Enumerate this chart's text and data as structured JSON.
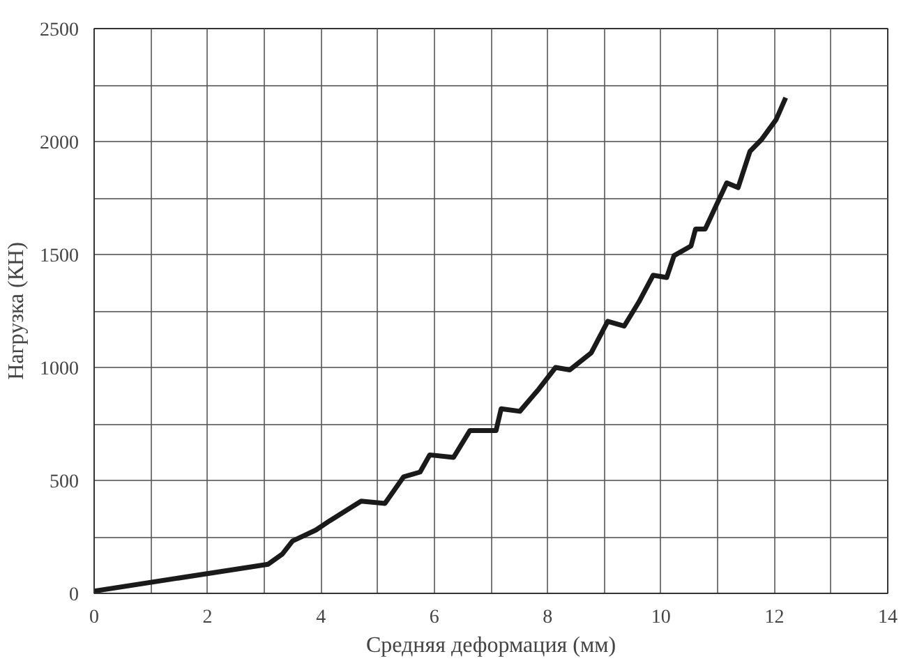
{
  "chart_data": {
    "type": "line",
    "xlabel": "Средняя деформация (мм)",
    "ylabel": "Нагрузка (КН)",
    "xlim": [
      0,
      14
    ],
    "ylim": [
      0,
      2500
    ],
    "xticks": [
      0,
      {
        "value": 1,
        "label": null
      },
      2,
      {
        "value": 3,
        "label": null
      },
      4,
      {
        "value": 5,
        "label": null
      },
      6,
      {
        "value": 7,
        "label": null
      },
      8,
      {
        "value": 9,
        "label": null
      },
      10,
      {
        "value": 11,
        "label": null
      },
      12,
      {
        "value": 13,
        "label": null
      },
      14
    ],
    "yticks": [
      0,
      {
        "value": 250,
        "label": null
      },
      500,
      {
        "value": 750,
        "label": null
      },
      1000,
      {
        "value": 1250,
        "label": null
      },
      1500,
      {
        "value": 1750,
        "label": null
      },
      2000,
      {
        "value": 2250,
        "label": null
      },
      2500
    ],
    "grid": true,
    "marker": "none",
    "line_style": "solid",
    "series": [
      {
        "color": "#1a1a1a",
        "x": [
          0,
          3.07,
          3.32,
          3.5,
          3.91,
          4.16,
          4.71,
          5.13,
          5.46,
          5.75,
          5.92,
          6.34,
          6.63,
          7.09,
          7.18,
          7.51,
          7.84,
          8.14,
          8.39,
          8.77,
          9.06,
          9.35,
          9.61,
          9.86,
          10.1,
          10.23,
          10.53,
          10.61,
          10.78,
          11.16,
          11.36,
          11.57,
          11.78,
          12.03,
          12.2
        ],
        "values": [
          10,
          129,
          174,
          232,
          280,
          322,
          408,
          398,
          516,
          537,
          613,
          602,
          721,
          721,
          817,
          806,
          903,
          1000,
          989,
          1065,
          1204,
          1183,
          1290,
          1408,
          1398,
          1495,
          1538,
          1613,
          1613,
          1817,
          1796,
          1957,
          2011,
          2097,
          2194
        ]
      }
    ]
  }
}
